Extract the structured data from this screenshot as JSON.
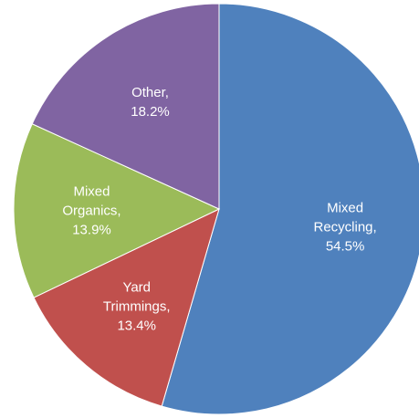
{
  "chart_data": {
    "type": "pie",
    "title": "",
    "start_angle_deg": 0,
    "direction": "clockwise",
    "slices": [
      {
        "label_lines": [
          "Mixed",
          "Recycling,",
          "54.5%"
        ],
        "category": "Mixed Recycling",
        "value": 54.5,
        "color": "#4F81BD"
      },
      {
        "label_lines": [
          "Yard",
          "Trimmings,",
          "13.4%"
        ],
        "category": "Yard Trimmings",
        "value": 13.4,
        "color": "#C0504D"
      },
      {
        "label_lines": [
          "Mixed",
          "Organics,",
          "13.9%"
        ],
        "category": "Mixed Organics",
        "value": 13.9,
        "color": "#9BBB59"
      },
      {
        "label_lines": [
          "Other,",
          "18.2%"
        ],
        "category": "Other",
        "value": 18.2,
        "color": "#8064A2"
      }
    ]
  }
}
